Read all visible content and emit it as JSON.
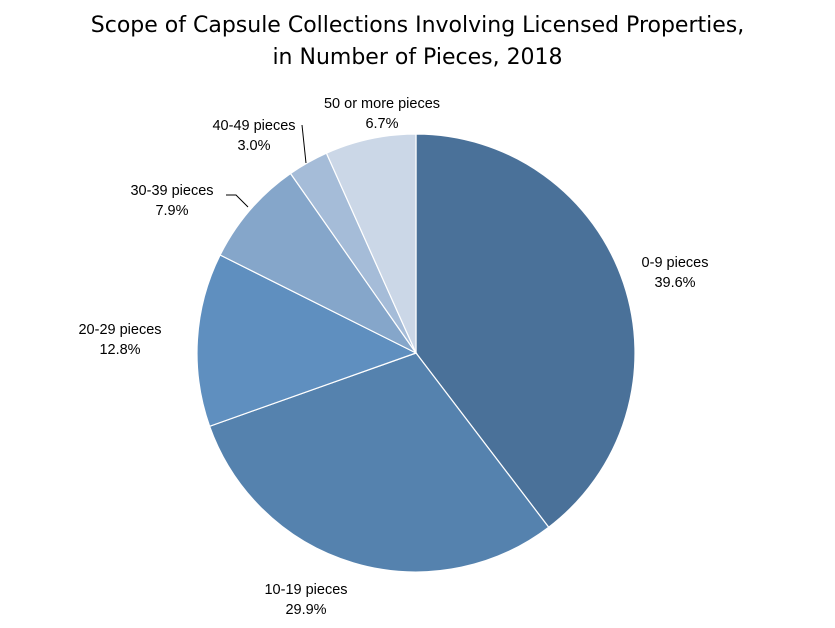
{
  "chart_data": {
    "type": "pie",
    "title_lines": [
      "Scope of Capsule Collections Involving Licensed Properties,",
      "in Number of Pieces, 2018"
    ],
    "slices": [
      {
        "label": "0-9 pieces",
        "value": 39.6,
        "value_label": "39.6%",
        "color": "#4A7199"
      },
      {
        "label": "10-19 pieces",
        "value": 29.9,
        "value_label": "29.9%",
        "color": "#5582AE"
      },
      {
        "label": "20-29 pieces",
        "value": 12.8,
        "value_label": "12.8%",
        "color": "#5F8FBF"
      },
      {
        "label": "30-39 pieces",
        "value": 7.9,
        "value_label": "7.9%",
        "color": "#85A6CA"
      },
      {
        "label": "40-49 pieces",
        "value": 3.0,
        "value_label": "3.0%",
        "color": "#A5BCD8"
      },
      {
        "label": "50 or more pieces",
        "value": 6.7,
        "value_label": "6.7%",
        "color": "#CBD7E7"
      }
    ],
    "start": "12 o'clock, clockwise",
    "legend": "none (direct labels)"
  }
}
